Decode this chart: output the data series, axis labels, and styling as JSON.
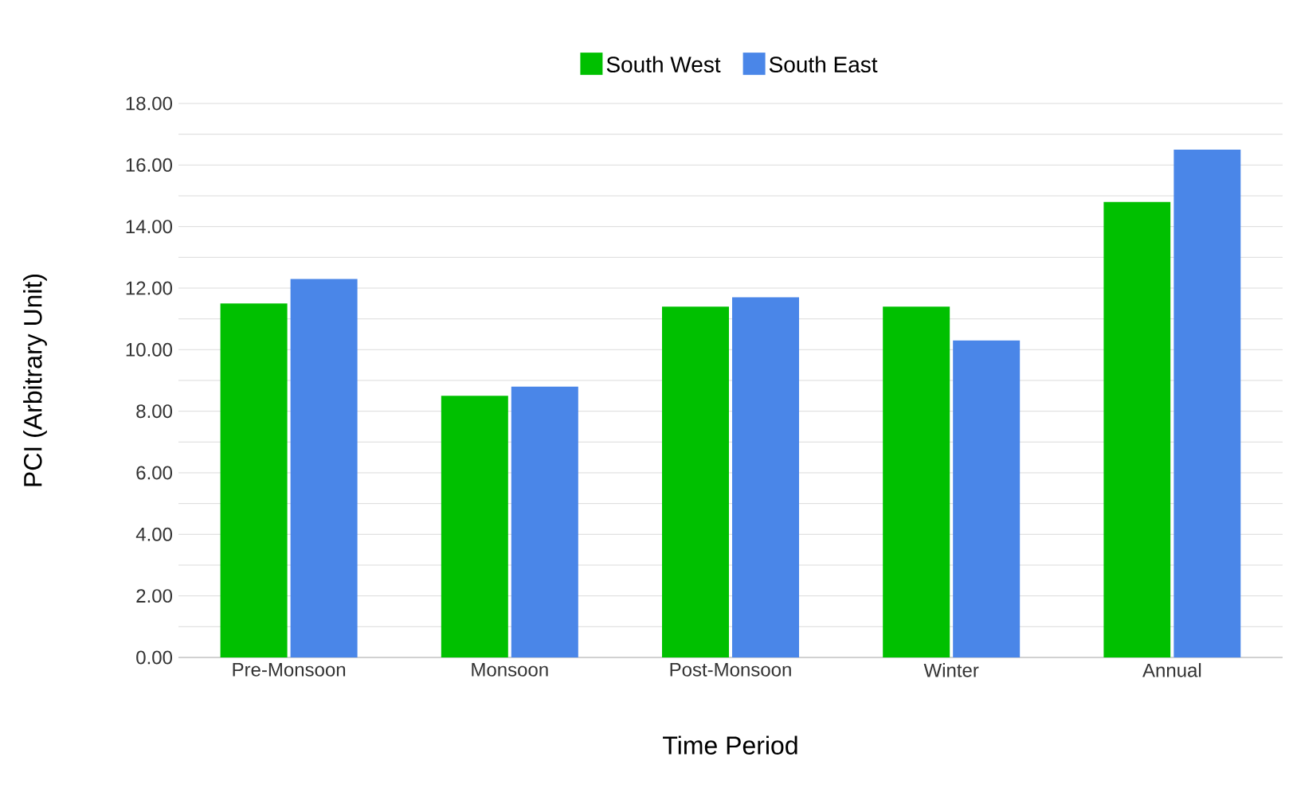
{
  "chart_data": {
    "type": "bar",
    "xlabel": "Time Period",
    "ylabel": "PCI (Arbitrary Unit)",
    "categories": [
      "Pre-Monsoon",
      "Monsoon",
      "Post-Monsoon",
      "Winter",
      "Annual"
    ],
    "series": [
      {
        "name": "South West",
        "color": "#00c000",
        "values": [
          11.5,
          8.5,
          11.4,
          11.4,
          14.8
        ]
      },
      {
        "name": "South East",
        "color": "#4a86e8",
        "values": [
          12.3,
          8.8,
          11.7,
          10.3,
          16.5
        ]
      }
    ],
    "ylim": [
      0,
      18
    ],
    "yticks": [
      {
        "value": 0,
        "label": "0.00"
      },
      {
        "value": 1,
        "label": null
      },
      {
        "value": 2,
        "label": "2.00"
      },
      {
        "value": 3,
        "label": null
      },
      {
        "value": 4,
        "label": "4.00"
      },
      {
        "value": 5,
        "label": null
      },
      {
        "value": 6,
        "label": "6.00"
      },
      {
        "value": 7,
        "label": null
      },
      {
        "value": 8,
        "label": "8.00"
      },
      {
        "value": 9,
        "label": null
      },
      {
        "value": 10,
        "label": "10.00"
      },
      {
        "value": 11,
        "label": null
      },
      {
        "value": 12,
        "label": "12.00"
      },
      {
        "value": 13,
        "label": null
      },
      {
        "value": 14,
        "label": "14.00"
      },
      {
        "value": 15,
        "label": null
      },
      {
        "value": 16,
        "label": "16.00"
      },
      {
        "value": 17,
        "label": null
      },
      {
        "value": 18,
        "label": "18.00"
      }
    ],
    "grid": "y",
    "legend": "top"
  }
}
